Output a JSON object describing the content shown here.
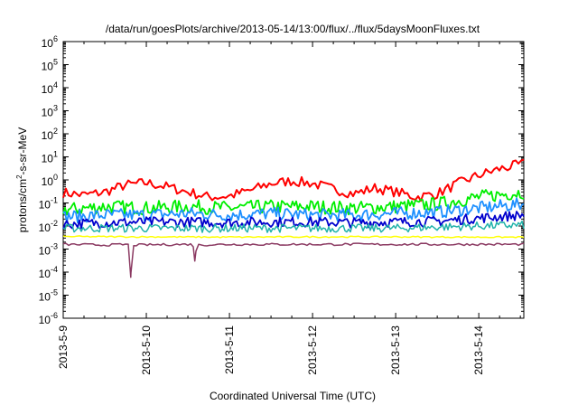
{
  "chart_data": {
    "type": "line",
    "title": "/data/run/goesPlots/archive/2013-05-14/13:00/flux/../flux/5daysMoonFluxes.txt",
    "xlabel": "Coordinated Universal Time (UTC)",
    "ylabel": {
      "pre": "protons/cm",
      "sup": "2",
      "post": "-s-sr-MeV"
    },
    "y_scale": "log",
    "ylim": [
      1e-06,
      1000000.0
    ],
    "y_ticks": [
      {
        "v": 1e-06,
        "exp": "-6"
      },
      {
        "v": 1e-05,
        "exp": "-5"
      },
      {
        "v": 0.0001,
        "exp": "-4"
      },
      {
        "v": 0.001,
        "exp": "-3"
      },
      {
        "v": 0.01,
        "exp": "-2"
      },
      {
        "v": 0.1,
        "exp": "-1"
      },
      {
        "v": 1,
        "exp": "0"
      },
      {
        "v": 10,
        "exp": "1"
      },
      {
        "v": 100,
        "exp": "2"
      },
      {
        "v": 1000,
        "exp": "3"
      },
      {
        "v": 10000,
        "exp": "4"
      },
      {
        "v": 100000,
        "exp": "5"
      },
      {
        "v": 1000000,
        "exp": "6"
      }
    ],
    "y_tick_base": "10",
    "x_ticks": [
      "2013-5-9",
      "2013-5-10",
      "2013-5-11",
      "2013-5-12",
      "2013-5-13",
      "2013-5-14"
    ],
    "xlim": [
      "2013-05-09 00:00",
      "2013-05-14 13:00"
    ],
    "grid": false,
    "series": [
      {
        "color": "#ff0000",
        "points": [
          [
            "2013-05-09 00:00",
            0.28
          ],
          [
            "2013-05-09 06:00",
            0.22
          ],
          [
            "2013-05-09 12:00",
            0.3
          ],
          [
            "2013-05-09 18:00",
            0.6
          ],
          [
            "2013-05-10 00:00",
            0.75
          ],
          [
            "2013-05-10 06:00",
            0.5
          ],
          [
            "2013-05-10 12:00",
            0.3
          ],
          [
            "2013-05-10 18:00",
            0.18
          ],
          [
            "2013-05-11 00:00",
            0.2
          ],
          [
            "2013-05-11 06:00",
            0.35
          ],
          [
            "2013-05-11 12:00",
            0.7
          ],
          [
            "2013-05-11 18:00",
            0.9
          ],
          [
            "2013-05-12 00:00",
            0.7
          ],
          [
            "2013-05-12 06:00",
            0.4
          ],
          [
            "2013-05-12 12:00",
            0.25
          ],
          [
            "2013-05-12 18:00",
            0.45
          ],
          [
            "2013-05-13 00:00",
            0.3
          ],
          [
            "2013-05-13 06:00",
            0.18
          ],
          [
            "2013-05-13 12:00",
            0.25
          ],
          [
            "2013-05-13 18:00",
            0.7
          ],
          [
            "2013-05-14 00:00",
            1.6
          ],
          [
            "2013-05-14 06:00",
            3.0
          ],
          [
            "2013-05-14 13:00",
            5.0
          ]
        ]
      },
      {
        "color": "#00ee00",
        "points": [
          [
            "2013-05-09 00:00",
            0.05
          ],
          [
            "2013-05-09 12:00",
            0.07
          ],
          [
            "2013-05-10 00:00",
            0.06
          ],
          [
            "2013-05-10 12:00",
            0.07
          ],
          [
            "2013-05-11 00:00",
            0.06
          ],
          [
            "2013-05-11 12:00",
            0.07
          ],
          [
            "2013-05-12 00:00",
            0.07
          ],
          [
            "2013-05-12 12:00",
            0.06
          ],
          [
            "2013-05-13 00:00",
            0.07
          ],
          [
            "2013-05-13 12:00",
            0.09
          ],
          [
            "2013-05-14 00:00",
            0.18
          ],
          [
            "2013-05-14 13:00",
            0.3
          ]
        ]
      },
      {
        "color": "#1e90ff",
        "points": [
          [
            "2013-05-09 00:00",
            0.025
          ],
          [
            "2013-05-09 12:00",
            0.03
          ],
          [
            "2013-05-10 00:00",
            0.03
          ],
          [
            "2013-05-10 12:00",
            0.035
          ],
          [
            "2013-05-11 00:00",
            0.03
          ],
          [
            "2013-05-11 12:00",
            0.035
          ],
          [
            "2013-05-12 00:00",
            0.03
          ],
          [
            "2013-05-12 12:00",
            0.03
          ],
          [
            "2013-05-13 00:00",
            0.035
          ],
          [
            "2013-05-13 12:00",
            0.04
          ],
          [
            "2013-05-14 00:00",
            0.06
          ],
          [
            "2013-05-14 13:00",
            0.09
          ]
        ]
      },
      {
        "color": "#0000cd",
        "points": [
          [
            "2013-05-09 00:00",
            0.012
          ],
          [
            "2013-05-09 12:00",
            0.014
          ],
          [
            "2013-05-10 00:00",
            0.015
          ],
          [
            "2013-05-10 12:00",
            0.015
          ],
          [
            "2013-05-11 00:00",
            0.014
          ],
          [
            "2013-05-11 12:00",
            0.015
          ],
          [
            "2013-05-12 00:00",
            0.015
          ],
          [
            "2013-05-12 12:00",
            0.014
          ],
          [
            "2013-05-13 00:00",
            0.015
          ],
          [
            "2013-05-13 12:00",
            0.016
          ],
          [
            "2013-05-14 00:00",
            0.022
          ],
          [
            "2013-05-14 13:00",
            0.03
          ]
        ]
      },
      {
        "color": "#20b2aa",
        "points": [
          [
            "2013-05-09 00:00",
            0.008
          ],
          [
            "2013-05-10 00:00",
            0.008
          ],
          [
            "2013-05-11 00:00",
            0.008
          ],
          [
            "2013-05-12 00:00",
            0.008
          ],
          [
            "2013-05-13 00:00",
            0.008
          ],
          [
            "2013-05-14 00:00",
            0.01
          ],
          [
            "2013-05-14 13:00",
            0.011
          ]
        ]
      },
      {
        "color": "#ffff00",
        "points": [
          [
            "2013-05-09 00:00",
            0.0035
          ],
          [
            "2013-05-10 00:00",
            0.0034
          ],
          [
            "2013-05-11 00:00",
            0.0033
          ],
          [
            "2013-05-12 00:00",
            0.0034
          ],
          [
            "2013-05-13 00:00",
            0.0034
          ],
          [
            "2013-05-14 00:00",
            0.0033
          ],
          [
            "2013-05-14 13:00",
            0.0033
          ]
        ]
      },
      {
        "color": "#8b3a62",
        "points": [
          [
            "2013-05-09 00:00",
            0.0016
          ],
          [
            "2013-05-09 12:00",
            0.0015
          ],
          [
            "2013-05-09 19:00",
            0.0016
          ],
          [
            "2013-05-09 19:30",
            6e-05
          ],
          [
            "2013-05-09 20:00",
            0.0015
          ],
          [
            "2013-05-10 12:00",
            0.0016
          ],
          [
            "2013-05-10 13:30",
            0.0016
          ],
          [
            "2013-05-10 14:00",
            0.0003
          ],
          [
            "2013-05-10 14:30",
            0.0015
          ],
          [
            "2013-05-11 00:00",
            0.0016
          ],
          [
            "2013-05-12 00:00",
            0.0016
          ],
          [
            "2013-05-13 00:00",
            0.0016
          ],
          [
            "2013-05-14 00:00",
            0.0016
          ],
          [
            "2013-05-14 13:00",
            0.0016
          ]
        ]
      }
    ]
  }
}
